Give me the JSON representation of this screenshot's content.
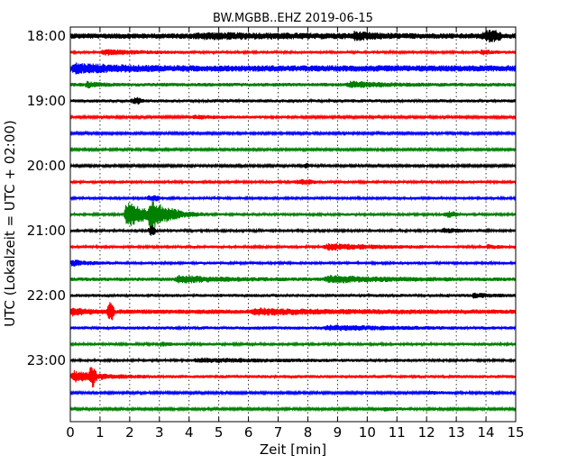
{
  "chart_data": {
    "type": "line",
    "title": "BW.MGBB..EHZ 2019-06-15",
    "xlabel": "Zeit  [min]",
    "ylabel": "UTC (Lokalzeit = UTC + 02:00)",
    "xlim": [
      0,
      15
    ],
    "x_ticks": [
      0,
      1,
      2,
      3,
      4,
      5,
      6,
      7,
      8,
      9,
      10,
      11,
      12,
      13,
      14,
      15
    ],
    "y_ticks": [
      "18:00",
      "19:00",
      "20:00",
      "21:00",
      "22:00",
      "23:00"
    ],
    "trace_interval_min": 15,
    "grid": "vertical dotted",
    "legend": "none",
    "colors": [
      "#000000",
      "#ff0000",
      "#0000ff",
      "#008000"
    ],
    "series": [
      {
        "time": "18:00",
        "color": "#000000",
        "amplitude": 0.6,
        "events": [
          {
            "minute": 4.0,
            "duration": 10.5,
            "amp": 0.4
          },
          {
            "minute": 9.5,
            "duration": 1.5,
            "amp": 0.7
          },
          {
            "minute": 13.8,
            "duration": 0.8,
            "amp": 0.9
          }
        ]
      },
      {
        "time": "18:15",
        "color": "#ff0000",
        "amplitude": 0.3,
        "events": [
          {
            "minute": 1.0,
            "duration": 3.3,
            "amp": 0.6
          },
          {
            "minute": 13.8,
            "duration": 1.2,
            "amp": 0.5
          }
        ]
      },
      {
        "time": "18:30",
        "color": "#0000ff",
        "amplitude": 0.7,
        "events": [
          {
            "minute": 0.0,
            "duration": 4.0,
            "amp": 0.8
          }
        ]
      },
      {
        "time": "18:45",
        "color": "#008000",
        "amplitude": 0.4,
        "events": [
          {
            "minute": 0.5,
            "duration": 1.0,
            "amp": 0.6
          },
          {
            "minute": 9.3,
            "duration": 3.0,
            "amp": 0.6
          }
        ]
      },
      {
        "time": "19:00",
        "color": "#000000",
        "amplitude": 0.35,
        "events": [
          {
            "minute": 2.0,
            "duration": 0.5,
            "amp": 0.5
          }
        ]
      },
      {
        "time": "19:15",
        "color": "#ff0000",
        "amplitude": 0.25,
        "events": [
          {
            "minute": 4.0,
            "duration": 4.0,
            "amp": 0.35
          }
        ]
      },
      {
        "time": "19:30",
        "color": "#0000ff",
        "amplitude": 0.25,
        "events": []
      },
      {
        "time": "19:45",
        "color": "#008000",
        "amplitude": 0.25,
        "events": []
      },
      {
        "time": "20:00",
        "color": "#000000",
        "amplitude": 0.25,
        "events": [
          {
            "minute": 7.8,
            "duration": 0.3,
            "amp": 0.4
          }
        ]
      },
      {
        "time": "20:15",
        "color": "#ff0000",
        "amplitude": 0.3,
        "events": [
          {
            "minute": 7.5,
            "duration": 0.8,
            "amp": 0.4
          }
        ]
      },
      {
        "time": "20:30",
        "color": "#0000ff",
        "amplitude": 0.3,
        "events": [
          {
            "minute": 2.5,
            "duration": 0.6,
            "amp": 0.5
          }
        ]
      },
      {
        "time": "20:45",
        "color": "#008000",
        "amplitude": 0.3,
        "events": [
          {
            "minute": 1.8,
            "duration": 2.0,
            "amp": 3.5
          },
          {
            "minute": 2.6,
            "duration": 2.0,
            "amp": 2.8
          },
          {
            "minute": 12.5,
            "duration": 0.6,
            "amp": 0.5
          }
        ]
      },
      {
        "time": "21:00",
        "color": "#000000",
        "amplitude": 0.3,
        "events": [
          {
            "minute": 2.6,
            "duration": 0.3,
            "amp": 1.0
          },
          {
            "minute": 12.5,
            "duration": 1.5,
            "amp": 0.5
          }
        ]
      },
      {
        "time": "21:15",
        "color": "#ff0000",
        "amplitude": 0.3,
        "events": [
          {
            "minute": 8.5,
            "duration": 4.5,
            "amp": 0.7
          },
          {
            "minute": 14.0,
            "duration": 1.0,
            "amp": 0.4
          }
        ]
      },
      {
        "time": "21:30",
        "color": "#0000ff",
        "amplitude": 0.3,
        "events": [
          {
            "minute": 0.0,
            "duration": 1.5,
            "amp": 0.7
          }
        ]
      },
      {
        "time": "21:45",
        "color": "#008000",
        "amplitude": 0.4,
        "events": [
          {
            "minute": 3.5,
            "duration": 3.5,
            "amp": 0.8
          },
          {
            "minute": 8.5,
            "duration": 5.5,
            "amp": 0.7
          }
        ]
      },
      {
        "time": "22:00",
        "color": "#000000",
        "amplitude": 0.35,
        "events": [
          {
            "minute": 13.5,
            "duration": 1.5,
            "amp": 0.5
          }
        ]
      },
      {
        "time": "22:15",
        "color": "#ff0000",
        "amplitude": 0.5,
        "events": [
          {
            "minute": 0.0,
            "duration": 1.5,
            "amp": 0.7
          },
          {
            "minute": 1.2,
            "duration": 0.3,
            "amp": 1.8
          },
          {
            "minute": 6.0,
            "duration": 6.5,
            "amp": 0.5
          }
        ]
      },
      {
        "time": "22:30",
        "color": "#0000ff",
        "amplitude": 0.35,
        "events": [
          {
            "minute": 8.5,
            "duration": 5.5,
            "amp": 0.5
          }
        ]
      },
      {
        "time": "22:45",
        "color": "#008000",
        "amplitude": 0.3,
        "events": [
          {
            "minute": 3.0,
            "duration": 1.0,
            "amp": 0.4
          }
        ]
      },
      {
        "time": "23:00",
        "color": "#000000",
        "amplitude": 0.3,
        "events": [
          {
            "minute": 4.0,
            "duration": 8.0,
            "amp": 0.4
          }
        ]
      },
      {
        "time": "23:15",
        "color": "#ff0000",
        "amplitude": 0.35,
        "events": [
          {
            "minute": 0.0,
            "duration": 2.5,
            "amp": 1.3
          },
          {
            "minute": 0.6,
            "duration": 0.3,
            "amp": 1.8
          }
        ]
      },
      {
        "time": "23:30",
        "color": "#0000ff",
        "amplitude": 0.25,
        "events": [
          {
            "minute": 12.0,
            "duration": 1.5,
            "amp": 0.35
          }
        ]
      },
      {
        "time": "23:45",
        "color": "#008000",
        "amplitude": 0.25,
        "events": [
          {
            "minute": 10.5,
            "duration": 1.5,
            "amp": 0.4
          }
        ]
      }
    ]
  }
}
